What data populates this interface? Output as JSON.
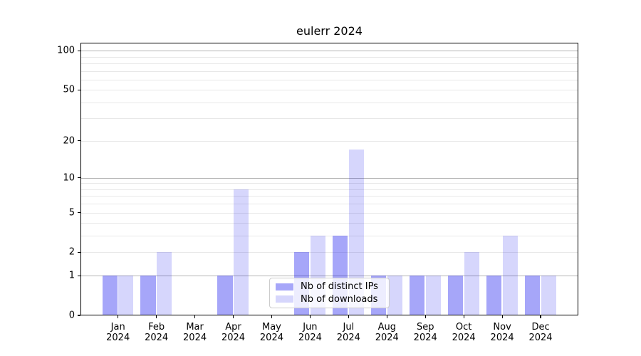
{
  "chart_data": {
    "type": "bar",
    "title": "eulerr 2024",
    "xlabel": "",
    "ylabel": "",
    "yscale": "log1p",
    "ylim": [
      0,
      115
    ],
    "categories": [
      "Jan",
      "Feb",
      "Mar",
      "Apr",
      "May",
      "Jun",
      "Jul",
      "Aug",
      "Sep",
      "Oct",
      "Nov",
      "Dec"
    ],
    "year": "2024",
    "yticks": [
      0,
      1,
      2,
      5,
      10,
      20,
      50,
      100
    ],
    "major_gridlines": [
      1,
      10,
      100
    ],
    "minor_gridlines": [
      2,
      3,
      4,
      5,
      6,
      7,
      8,
      9,
      20,
      30,
      40,
      50,
      60,
      70,
      80,
      90
    ],
    "grid": "on",
    "legend_position": "lower center",
    "series": [
      {
        "name": "Nb of distinct IPs",
        "fill": "rgba(0,0,238,0.35)",
        "values": [
          1,
          1,
          0,
          1,
          0,
          2,
          3,
          1,
          1,
          1,
          1,
          1
        ]
      },
      {
        "name": "Nb of downloads",
        "fill": "rgba(0,0,238,0.16)",
        "values": [
          1,
          2,
          0,
          8,
          0,
          3,
          17,
          1,
          1,
          2,
          3,
          1
        ]
      }
    ],
    "colors": {
      "grid_major": "#b3b3b3",
      "grid_minor": "#e8e8e8",
      "spine": "#000000",
      "text": "#000000"
    }
  }
}
